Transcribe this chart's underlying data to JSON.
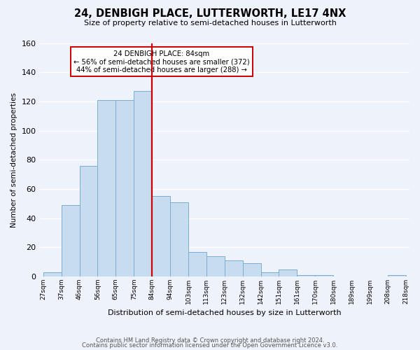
{
  "title": "24, DENBIGH PLACE, LUTTERWORTH, LE17 4NX",
  "subtitle": "Size of property relative to semi-detached houses in Lutterworth",
  "xlabel": "Distribution of semi-detached houses by size in Lutterworth",
  "ylabel": "Number of semi-detached properties",
  "bin_labels": [
    "27sqm",
    "37sqm",
    "46sqm",
    "56sqm",
    "65sqm",
    "75sqm",
    "84sqm",
    "94sqm",
    "103sqm",
    "113sqm",
    "123sqm",
    "132sqm",
    "142sqm",
    "151sqm",
    "161sqm",
    "170sqm",
    "180sqm",
    "189sqm",
    "199sqm",
    "208sqm",
    "218sqm"
  ],
  "bin_values": [
    3,
    49,
    76,
    121,
    121,
    127,
    55,
    51,
    17,
    14,
    11,
    9,
    3,
    5,
    1,
    1,
    0,
    0,
    0,
    1
  ],
  "bar_color": "#c8dcf0",
  "bar_edge_color": "#7aaed0",
  "highlight_bin_index": 6,
  "highlight_line_color": "#cc0000",
  "annotation_title": "24 DENBIGH PLACE: 84sqm",
  "annotation_line1": "← 56% of semi-detached houses are smaller (372)",
  "annotation_line2": "44% of semi-detached houses are larger (288) →",
  "annotation_box_facecolor": "#ffffff",
  "annotation_box_edgecolor": "#cc0000",
  "footer_line1": "Contains HM Land Registry data © Crown copyright and database right 2024.",
  "footer_line2": "Contains public sector information licensed under the Open Government Licence v3.0.",
  "ylim": [
    0,
    160
  ],
  "background_color": "#eef2fa"
}
